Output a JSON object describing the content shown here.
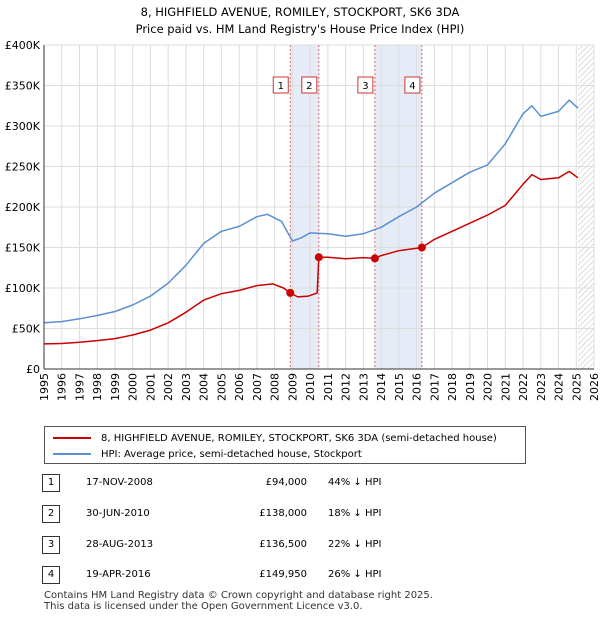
{
  "header": {
    "title_line1": "8, HIGHFIELD AVENUE, ROMILEY, STOCKPORT, SK6 3DA",
    "title_line2": "Price paid vs. HM Land Registry's House Price Index (HPI)"
  },
  "chart_data": {
    "type": "line",
    "xlim": [
      1995,
      2026
    ],
    "ylim": [
      0,
      400000
    ],
    "x_ticks": [
      "1995",
      "1996",
      "1997",
      "1998",
      "1999",
      "2000",
      "2001",
      "2002",
      "2003",
      "2004",
      "2005",
      "2006",
      "2007",
      "2008",
      "2009",
      "2010",
      "2011",
      "2012",
      "2013",
      "2014",
      "2015",
      "2016",
      "2017",
      "2018",
      "2019",
      "2020",
      "2021",
      "2022",
      "2023",
      "2024",
      "2025",
      "2026"
    ],
    "y_ticks": [
      {
        "value": 0,
        "label": "£0"
      },
      {
        "value": 50000,
        "label": "£50K"
      },
      {
        "value": 100000,
        "label": "£100K"
      },
      {
        "value": 150000,
        "label": "£150K"
      },
      {
        "value": 200000,
        "label": "£200K"
      },
      {
        "value": 250000,
        "label": "£250K"
      },
      {
        "value": 300000,
        "label": "£300K"
      },
      {
        "value": 350000,
        "label": "£350K"
      },
      {
        "value": 400000,
        "label": "£400K"
      }
    ],
    "grid": true,
    "future_hatch_from": 2025.1,
    "series": [
      {
        "name": "8, HIGHFIELD AVENUE, ROMILEY, STOCKPORT, SK6 3DA (semi-detached house)",
        "color": "#cc0000",
        "points": [
          [
            1995,
            31000
          ],
          [
            1996,
            31500
          ],
          [
            1997,
            33000
          ],
          [
            1998,
            35000
          ],
          [
            1999,
            37500
          ],
          [
            2000,
            42000
          ],
          [
            2001,
            48000
          ],
          [
            2002,
            57000
          ],
          [
            2003,
            70000
          ],
          [
            2004,
            85000
          ],
          [
            2005,
            93000
          ],
          [
            2006,
            97000
          ],
          [
            2007,
            103000
          ],
          [
            2007.9,
            105000
          ],
          [
            2008.5,
            100000
          ],
          [
            2008.88,
            94000
          ],
          [
            2009.3,
            89000
          ],
          [
            2009.9,
            90000
          ],
          [
            2010.4,
            94000
          ],
          [
            2010.49,
            138000
          ],
          [
            2011,
            138000
          ],
          [
            2012,
            136000
          ],
          [
            2013,
            137500
          ],
          [
            2013.65,
            136500
          ],
          [
            2014,
            140000
          ],
          [
            2015,
            146000
          ],
          [
            2016.3,
            149950
          ],
          [
            2017,
            160000
          ],
          [
            2018,
            170000
          ],
          [
            2019,
            180000
          ],
          [
            2020,
            190000
          ],
          [
            2021,
            202000
          ],
          [
            2022,
            228000
          ],
          [
            2022.5,
            240000
          ],
          [
            2023,
            234000
          ],
          [
            2024,
            236000
          ],
          [
            2024.6,
            244000
          ],
          [
            2025.1,
            236000
          ]
        ]
      },
      {
        "name": "HPI: Average price, semi-detached house, Stockport",
        "color": "#5b8fd0",
        "points": [
          [
            1995,
            57000
          ],
          [
            1996,
            58500
          ],
          [
            1997,
            62000
          ],
          [
            1998,
            66000
          ],
          [
            1999,
            71000
          ],
          [
            2000,
            79000
          ],
          [
            2001,
            90000
          ],
          [
            2002,
            106000
          ],
          [
            2003,
            128000
          ],
          [
            2004,
            155000
          ],
          [
            2005,
            170000
          ],
          [
            2006,
            176000
          ],
          [
            2007,
            188000
          ],
          [
            2007.6,
            191000
          ],
          [
            2008.4,
            182000
          ],
          [
            2009,
            158000
          ],
          [
            2009.5,
            162000
          ],
          [
            2010,
            168000
          ],
          [
            2011,
            167000
          ],
          [
            2012,
            164000
          ],
          [
            2013,
            167000
          ],
          [
            2014,
            175000
          ],
          [
            2015,
            188000
          ],
          [
            2016,
            200000
          ],
          [
            2017,
            217000
          ],
          [
            2018,
            230000
          ],
          [
            2019,
            243000
          ],
          [
            2020,
            252000
          ],
          [
            2021,
            278000
          ],
          [
            2022,
            315000
          ],
          [
            2022.5,
            325000
          ],
          [
            2023,
            312000
          ],
          [
            2024,
            318000
          ],
          [
            2024.6,
            332000
          ],
          [
            2025.1,
            322000
          ]
        ]
      }
    ],
    "transactions": [
      {
        "id": "1",
        "x": 2008.88,
        "price": 94000,
        "date": "17-NOV-2008",
        "price_label": "£94,000",
        "hpi": "44% ↓ HPI"
      },
      {
        "id": "2",
        "x": 2010.49,
        "price": 138000,
        "date": "30-JUN-2010",
        "price_label": "£138,000",
        "hpi": "18% ↓ HPI"
      },
      {
        "id": "3",
        "x": 2013.65,
        "price": 136500,
        "date": "28-AUG-2013",
        "price_label": "£136,500",
        "hpi": "22% ↓ HPI"
      },
      {
        "id": "4",
        "x": 2016.3,
        "price": 149950,
        "date": "19-APR-2016",
        "price_label": "£149,950",
        "hpi": "26% ↓ HPI"
      }
    ]
  },
  "legend": {
    "property_label": "8, HIGHFIELD AVENUE, ROMILEY, STOCKPORT, SK6 3DA (semi-detached house)",
    "hpi_label": "HPI: Average price, semi-detached house, Stockport"
  },
  "footer": {
    "line1": "Contains HM Land Registry data © Crown copyright and database right 2025.",
    "line2": "This data is licensed under the Open Government Licence v3.0."
  }
}
